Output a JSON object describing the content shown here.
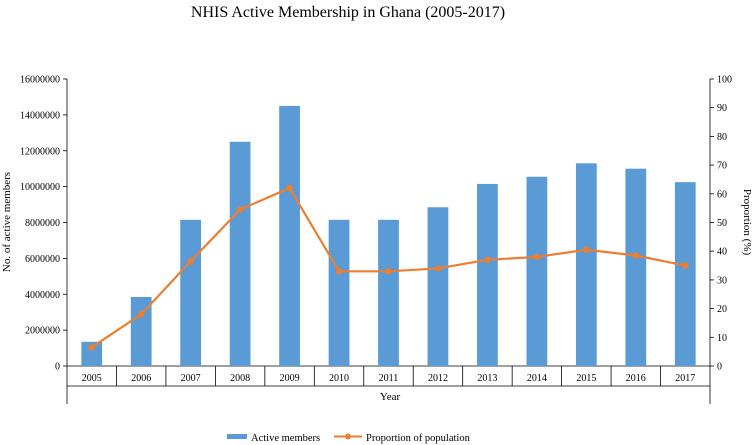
{
  "chart_data": {
    "type": "bar+line",
    "title": "NHIS Active Membership in Ghana (2005-2017)",
    "xlabel": "Year",
    "ylabel_left": "No. of active members",
    "ylabel_right": "Proportion (%)",
    "categories": [
      "2005",
      "2006",
      "2007",
      "2008",
      "2009",
      "2010",
      "2011",
      "2012",
      "2013",
      "2014",
      "2015",
      "2016",
      "2017"
    ],
    "series": [
      {
        "name": "Active members",
        "type": "bar",
        "axis": "left",
        "color": "#5b9bd5",
        "values": [
          1350000,
          3850000,
          8150000,
          12500000,
          14500000,
          8150000,
          8150000,
          8850000,
          10150000,
          10550000,
          11300000,
          11000000,
          10250000
        ]
      },
      {
        "name": "Proportion of population",
        "type": "line",
        "axis": "right",
        "color": "#ed7d31",
        "values": [
          6.5,
          18,
          36.5,
          54.5,
          62,
          33,
          33,
          34,
          37,
          38,
          40.5,
          38.5,
          35
        ]
      }
    ],
    "ylim_left": [
      0,
      16000000
    ],
    "yticks_left": [
      "0",
      "2000000",
      "4000000",
      "6000000",
      "8000000",
      "10000000",
      "12000000",
      "14000000",
      "16000000"
    ],
    "ylim_right": [
      0,
      100
    ],
    "yticks_right": [
      "0",
      "10",
      "20",
      "30",
      "40",
      "50",
      "60",
      "70",
      "80",
      "90",
      "100"
    ],
    "grid": false,
    "legend_position": "bottom"
  }
}
